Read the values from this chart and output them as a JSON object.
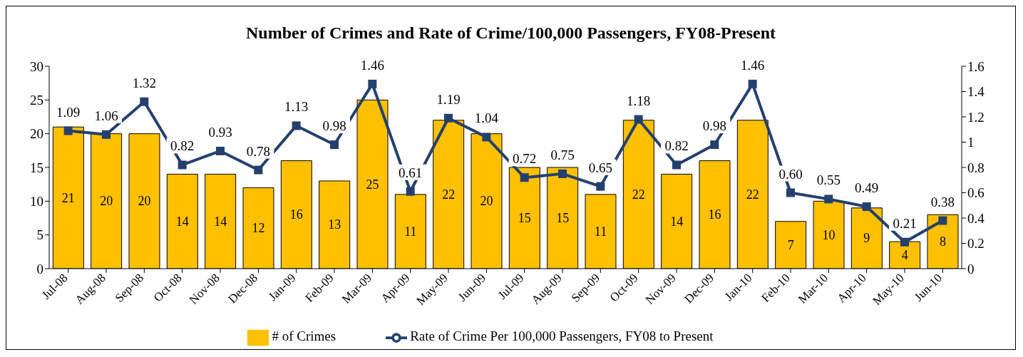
{
  "chart_data": {
    "type": "bar",
    "title": "Number of Crimes and Rate of Crime/100,000 Passengers, FY08-Present",
    "categories": [
      "Jul-08",
      "Aug-08",
      "Sep-08",
      "Oct-08",
      "Nov-08",
      "Dec-08",
      "Jan-09",
      "Feb-09",
      "Mar-09",
      "Apr-09",
      "May-09",
      "Jun-09",
      "Jul-09",
      "Aug-09",
      "Sep-09",
      "Oct-09",
      "Nov-09",
      "Dec-09",
      "Jan-10",
      "Feb-10",
      "Mar-10",
      "Apr-10",
      "May-10",
      "Jun-10"
    ],
    "series": [
      {
        "name": "# of Crimes",
        "color": "#ffc000",
        "values": [
          21,
          20,
          20,
          14,
          14,
          12,
          16,
          13,
          25,
          11,
          22,
          20,
          15,
          15,
          11,
          22,
          14,
          16,
          22,
          7,
          10,
          9,
          4,
          8
        ],
        "value_labels": [
          "21",
          "20",
          "20",
          "14",
          "14",
          "12",
          "16",
          "13",
          "25",
          "11",
          "22",
          "20",
          "15",
          "15",
          "11",
          "22",
          "14",
          "16",
          "22",
          "7",
          "10",
          "9",
          "4",
          "8"
        ]
      },
      {
        "name": "Rate of Crime Per 100,000 Passengers, FY08 to Present",
        "type": "line",
        "axis": "y2",
        "color": "#24406e",
        "marker": "square",
        "values": [
          1.09,
          1.06,
          1.32,
          0.82,
          0.93,
          0.78,
          1.13,
          0.98,
          1.46,
          0.61,
          1.19,
          1.04,
          0.72,
          0.75,
          0.65,
          1.18,
          0.82,
          0.98,
          1.46,
          0.6,
          0.55,
          0.49,
          0.21,
          0.38
        ],
        "value_labels": [
          "1.09",
          "1.06",
          "1.32",
          "0.82",
          "0.93",
          "0.78",
          "1.13",
          "0.98",
          "1.46",
          "0.61",
          "1.19",
          "1.04",
          "0.72",
          "0.75",
          "0.65",
          "1.18",
          "0.82",
          "0.98",
          "1.46",
          "0.60",
          "0.55",
          "0.49",
          "0.21",
          "0.38"
        ]
      }
    ],
    "ylim": [
      0,
      30
    ],
    "yticks": [
      0,
      5,
      10,
      15,
      20,
      25,
      30
    ],
    "y2lim": [
      0,
      1.6
    ],
    "y2ticks": [
      0,
      0.2,
      0.4,
      0.6,
      0.8,
      1,
      1.2,
      1.4,
      1.6
    ],
    "legend": "bottom"
  }
}
